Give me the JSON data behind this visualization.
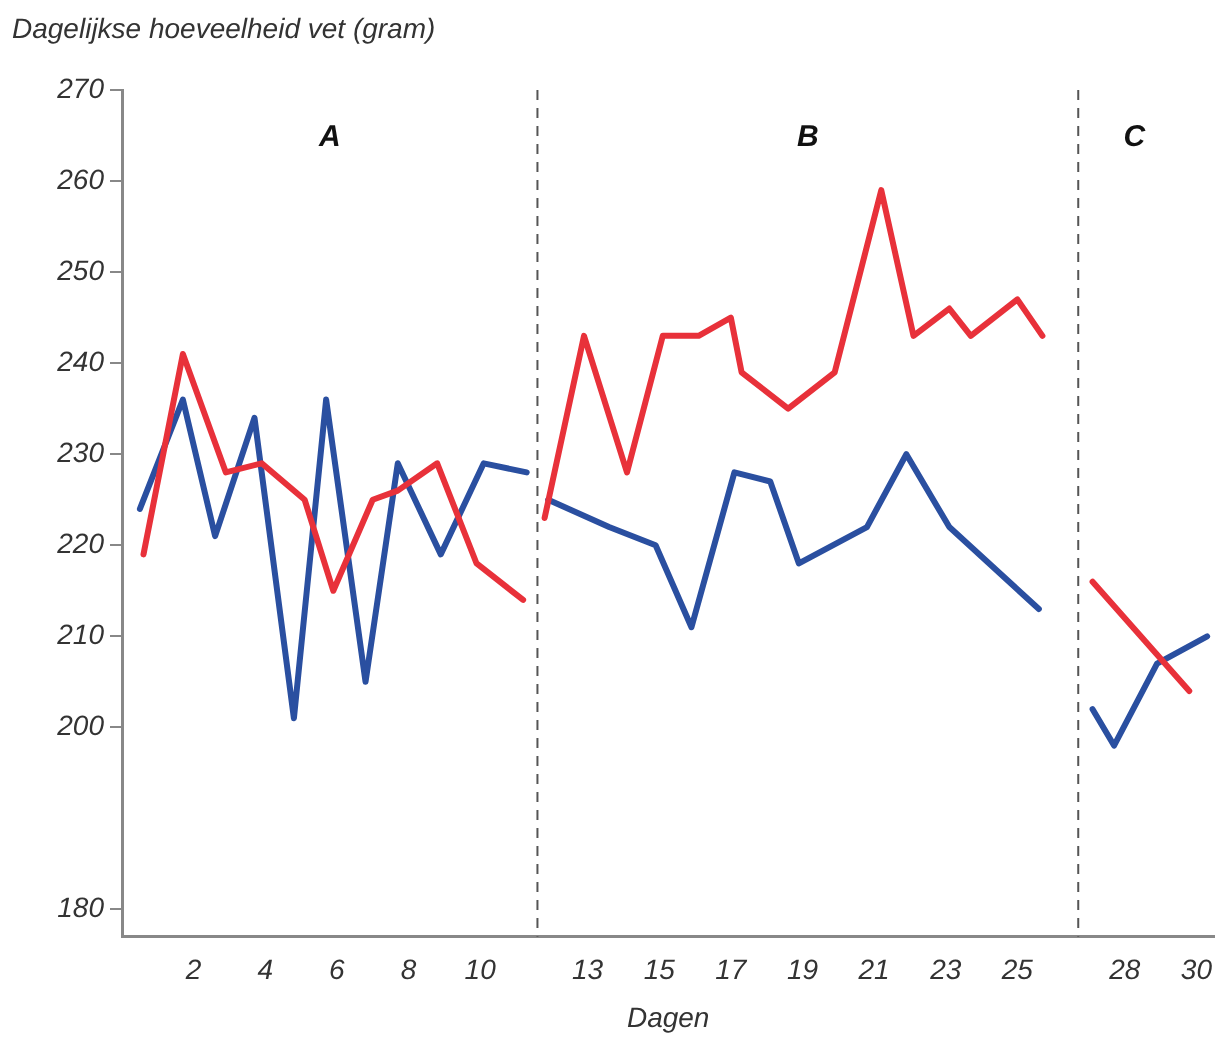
{
  "chart_data": {
    "type": "line",
    "ylabel": "Dagelijkse hoeveelheid vet (gram)",
    "xlabel": "Dagen",
    "annotations": [
      "A",
      "B",
      "C"
    ],
    "xlim": [
      0,
      30.5
    ],
    "xticks": [
      2,
      4,
      6,
      8,
      10,
      13,
      15,
      17,
      19,
      21,
      23,
      25,
      28,
      30
    ],
    "ylim": [
      177,
      270
    ],
    "yticks": [
      180,
      200,
      210,
      220,
      230,
      240,
      250,
      260,
      270
    ],
    "grid": false,
    "legend": false,
    "marker": "none",
    "line_style": "solid",
    "ref_lines": [
      {
        "axis": "x",
        "value": 11.6,
        "label": null,
        "color": "#555555",
        "line_style": "dashed"
      },
      {
        "axis": "x",
        "value": 26.7,
        "label": null,
        "color": "#555555",
        "line_style": "dashed"
      }
    ],
    "series": [
      {
        "color": "#e8313a",
        "x": [
          0.6,
          1.7,
          2.9,
          3.9,
          5.1,
          5.9,
          7.0,
          7.7,
          8.8,
          9.9,
          11.2,
          11.6,
          11.8,
          12.9,
          14.1,
          15.1,
          16.1,
          17.0,
          17.3,
          18.6,
          19.9,
          21.2,
          22.1,
          23.1,
          23.7,
          25.0,
          25.7,
          26.7,
          27.1,
          29.8
        ],
        "values": [
          219,
          241,
          228,
          229,
          225,
          215,
          225,
          226,
          229,
          218,
          214,
          null,
          223,
          243,
          228,
          243,
          243,
          245,
          239,
          235,
          239,
          259,
          243,
          246,
          243,
          247,
          243,
          null,
          216,
          204
        ]
      },
      {
        "color": "#2a4fa0",
        "x": [
          0.5,
          1.7,
          2.6,
          3.7,
          4.8,
          5.7,
          6.8,
          7.7,
          8.9,
          10.1,
          11.3,
          11.6,
          11.9,
          13.6,
          14.9,
          15.9,
          17.1,
          18.1,
          18.9,
          20.8,
          21.9,
          23.1,
          25.6,
          26.7,
          27.1,
          27.7,
          28.9,
          30.3
        ],
        "values": [
          224,
          236,
          221,
          234,
          201,
          236,
          205,
          229,
          219,
          229,
          228,
          null,
          225,
          222,
          220,
          211,
          228,
          227,
          218,
          222,
          230,
          222,
          213,
          null,
          202,
          198,
          207,
          210
        ]
      }
    ]
  }
}
